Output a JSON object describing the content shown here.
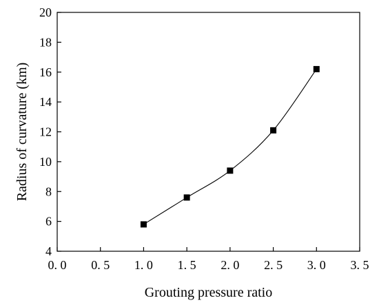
{
  "chart_data": {
    "type": "scatter",
    "title": "",
    "xlabel": "Grouting pressure ratio",
    "ylabel": "Radius of curvature (km)",
    "xlim": [
      0.0,
      3.5
    ],
    "ylim": [
      4,
      20
    ],
    "x_ticks": [
      0.0,
      0.5,
      1.0,
      1.5,
      2.0,
      2.5,
      3.0,
      3.5
    ],
    "x_tick_labels": [
      "0. 0",
      "0. 5",
      "1. 0",
      "1. 5",
      "2. 0",
      "2. 5",
      "3. 0",
      "3. 5"
    ],
    "y_ticks": [
      4,
      6,
      8,
      10,
      12,
      14,
      16,
      18,
      20
    ],
    "y_tick_labels": [
      "4",
      "6",
      "8",
      "10",
      "12",
      "14",
      "16",
      "18",
      "20"
    ],
    "grid": false,
    "marker": "square",
    "smooth_line": true,
    "color": "#000000",
    "series": [
      {
        "x": [
          1.0,
          1.5,
          2.0,
          2.5,
          3.0
        ],
        "y": [
          5.8,
          7.6,
          9.4,
          12.1,
          16.2
        ]
      }
    ]
  }
}
